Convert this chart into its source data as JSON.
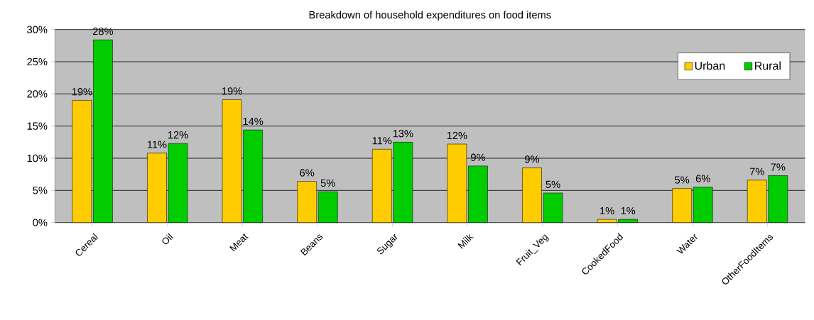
{
  "chart_data": {
    "type": "bar",
    "title": "Breakdown of household expenditures on food items",
    "categories": [
      "Cereal",
      "Oil",
      "Meat",
      "Beans",
      "Sugar",
      "Milk",
      "Fruit_Veg",
      "CookedFood",
      "Water",
      "OtherFoodItems"
    ],
    "series": [
      {
        "name": "Urban",
        "color": "#ffcc00",
        "values": [
          19.0,
          10.8,
          19.1,
          6.4,
          11.4,
          12.2,
          8.5,
          0.5,
          5.3,
          6.6
        ],
        "value_labels": [
          "19%",
          "11%",
          "19%",
          "6%",
          "11%",
          "12%",
          "9%",
          "1%",
          "5%",
          "7%"
        ]
      },
      {
        "name": "Rural",
        "color": "#00cc00",
        "values": [
          28.4,
          12.3,
          14.4,
          4.8,
          12.5,
          8.8,
          4.6,
          0.5,
          5.5,
          7.3
        ],
        "value_labels": [
          "28%",
          "12%",
          "14%",
          "5%",
          "13%",
          "9%",
          "5%",
          "1%",
          "6%",
          "7%"
        ]
      }
    ],
    "ylim": [
      0,
      30
    ],
    "yticks": [
      {
        "value": 0,
        "label": "0%"
      },
      {
        "value": 5,
        "label": "5%"
      },
      {
        "value": 10,
        "label": "10%"
      },
      {
        "value": 15,
        "label": "15%"
      },
      {
        "value": 20,
        "label": "20%"
      },
      {
        "value": 25,
        "label": "25%"
      },
      {
        "value": 30,
        "label": "30%"
      }
    ],
    "grid": "y",
    "legend": "top right"
  }
}
